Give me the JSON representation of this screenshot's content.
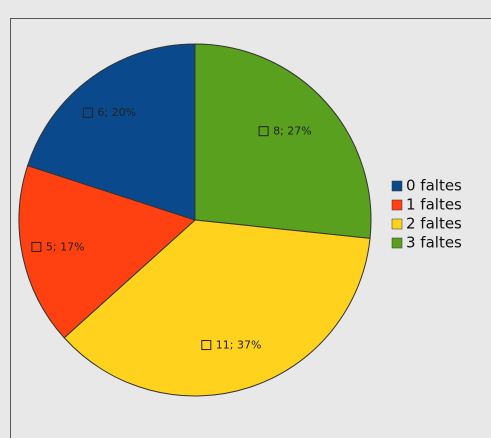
{
  "chart_data": {
    "type": "pie",
    "categories": [
      "0 faltes",
      "1 faltes",
      "2 faltes",
      "3 faltes"
    ],
    "values": [
      6,
      5,
      11,
      8
    ],
    "value_labels": [
      "6; 20%",
      "5; 17%",
      "11; 37%",
      "8; 27%"
    ],
    "colors": [
      "#0a4a8c",
      "#ff4010",
      "#ffd21e",
      "#58a01e"
    ],
    "legend": "right"
  }
}
